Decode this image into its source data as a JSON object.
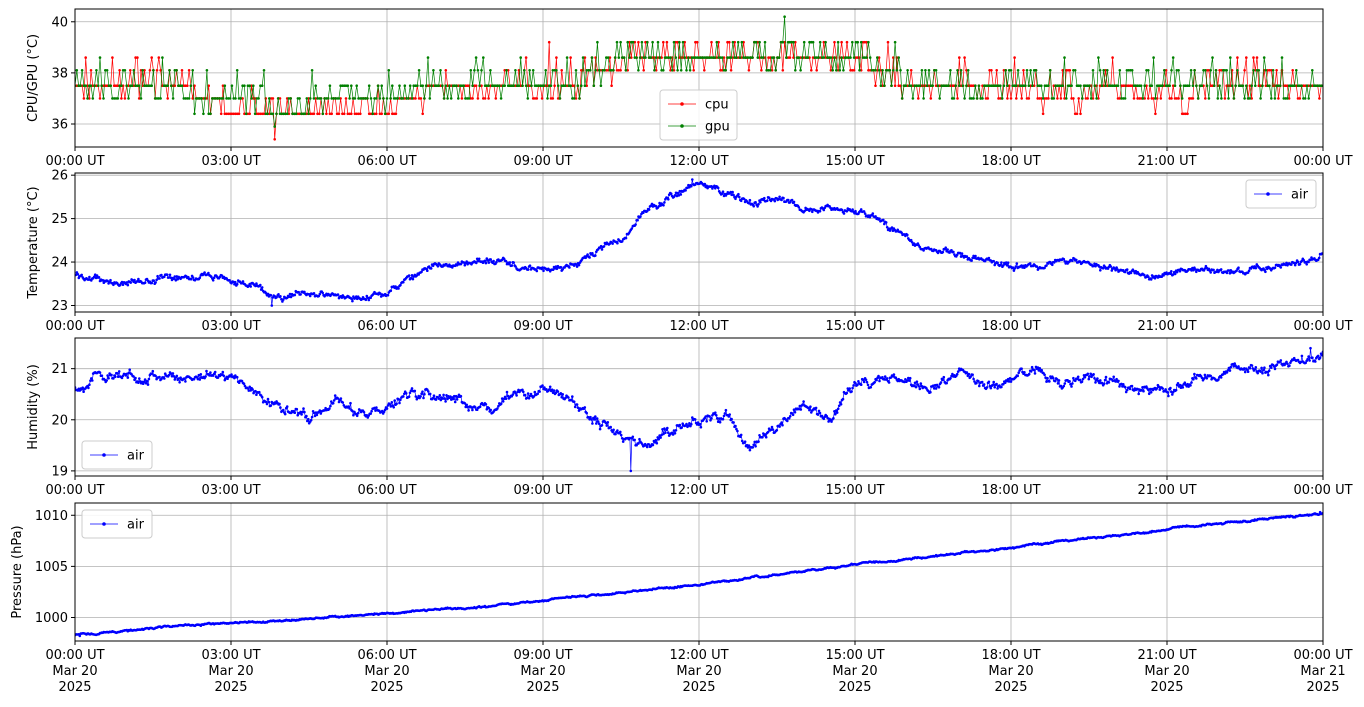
{
  "chart_data": [
    {
      "type": "line",
      "ylabel": "CPU/GPU (°C)",
      "ylim": [
        35.1,
        40.5
      ],
      "yticks": [
        "36",
        "38",
        "40"
      ],
      "ytick_values": [
        36,
        38,
        40
      ],
      "xlim_hours": [
        0,
        24
      ],
      "xtick_labels": [
        "00:00 UT",
        "03:00 UT",
        "06:00 UT",
        "09:00 UT",
        "12:00 UT",
        "15:00 UT",
        "18:00 UT",
        "21:00 UT",
        "00:00 UT"
      ],
      "grid": true,
      "legend_position": "lower-center",
      "series": [
        {
          "name": "cpu",
          "color": "#ff0000",
          "x": [
            0,
            1,
            2,
            2.5,
            3,
            3.5,
            4,
            4.5,
            5,
            5.5,
            6,
            7,
            8,
            9,
            9.5,
            10,
            11,
            12,
            13,
            14,
            15,
            15.5,
            16,
            17,
            18,
            19,
            20,
            21,
            22,
            23,
            24
          ],
          "y": [
            37.5,
            37.5,
            37.5,
            37.0,
            36.5,
            36.5,
            36.2,
            36.5,
            36.5,
            36.5,
            36.5,
            37.5,
            37.5,
            37.5,
            37.5,
            38.1,
            38.6,
            38.6,
            38.6,
            38.6,
            38.6,
            38.1,
            37.5,
            37.5,
            37.5,
            37.0,
            37.5,
            37.0,
            37.5,
            37.5,
            37.5
          ],
          "min_visible": 35.4,
          "max_visible": 39.2
        },
        {
          "name": "gpu",
          "color": "#008000",
          "x": [
            0,
            1,
            2,
            2.5,
            3,
            3.5,
            4,
            4.5,
            5,
            5.5,
            6,
            7,
            8,
            9,
            9.5,
            10,
            11,
            12,
            13,
            14,
            15,
            15.5,
            16,
            17,
            18,
            19,
            20,
            21,
            22,
            23,
            24
          ],
          "y": [
            37.5,
            37.3,
            37.3,
            37.0,
            37.0,
            36.8,
            36.5,
            36.7,
            36.8,
            37.0,
            37.0,
            37.5,
            37.5,
            37.3,
            37.3,
            38.2,
            38.6,
            38.6,
            38.6,
            38.6,
            38.6,
            38.2,
            37.5,
            37.5,
            37.6,
            37.5,
            37.5,
            37.5,
            37.5,
            37.5,
            37.6
          ],
          "min_visible": 35.9,
          "max_visible": 40.2
        }
      ]
    },
    {
      "type": "line",
      "ylabel": "Temperature (°C)",
      "ylim": [
        22.85,
        26.05
      ],
      "yticks": [
        "23",
        "24",
        "25",
        "26"
      ],
      "ytick_values": [
        23,
        24,
        25,
        26
      ],
      "xlim_hours": [
        0,
        24
      ],
      "xtick_labels": [
        "00:00 UT",
        "03:00 UT",
        "06:00 UT",
        "09:00 UT",
        "12:00 UT",
        "15:00 UT",
        "18:00 UT",
        "21:00 UT",
        "00:00 UT"
      ],
      "grid": true,
      "legend_position": "upper-right",
      "series": [
        {
          "name": "air",
          "color": "#0000ff",
          "x": [
            0,
            0.5,
            1,
            1.5,
            2,
            2.5,
            3,
            3.5,
            4,
            4.5,
            5,
            5.5,
            6,
            6.5,
            7,
            7.5,
            8,
            8.5,
            9,
            9.5,
            10,
            10.5,
            11,
            11.5,
            12,
            12.5,
            13,
            13.5,
            14,
            14.5,
            15,
            15.5,
            16,
            16.5,
            17,
            17.5,
            18,
            18.5,
            19,
            19.5,
            20,
            20.5,
            21,
            21.5,
            22,
            22.5,
            23,
            23.5,
            24
          ],
          "y": [
            23.7,
            23.6,
            23.5,
            23.6,
            23.7,
            23.7,
            23.6,
            23.4,
            23.2,
            23.3,
            23.2,
            23.2,
            23.3,
            23.6,
            24.0,
            23.9,
            24.1,
            23.9,
            23.8,
            23.9,
            24.2,
            24.5,
            25.2,
            25.5,
            25.8,
            25.6,
            25.4,
            25.5,
            25.2,
            25.3,
            25.2,
            24.9,
            24.5,
            24.3,
            24.2,
            24.0,
            23.9,
            23.9,
            24.0,
            23.9,
            23.8,
            23.7,
            23.7,
            23.8,
            23.8,
            23.8,
            23.9,
            24.0,
            24.1
          ],
          "min_visible": 23.0,
          "max_visible": 25.9
        }
      ]
    },
    {
      "type": "line",
      "ylabel": "Humidity (%)",
      "ylim": [
        18.9,
        21.6
      ],
      "yticks": [
        "19",
        "20",
        "21"
      ],
      "ytick_values": [
        19,
        20,
        21
      ],
      "xlim_hours": [
        0,
        24
      ],
      "xtick_labels": [
        "00:00 UT",
        "03:00 UT",
        "06:00 UT",
        "09:00 UT",
        "12:00 UT",
        "15:00 UT",
        "18:00 UT",
        "21:00 UT",
        "00:00 UT"
      ],
      "grid": true,
      "legend_position": "lower-left",
      "series": [
        {
          "name": "air",
          "color": "#0000ff",
          "x": [
            0,
            0.5,
            1,
            1.5,
            2,
            2.5,
            3,
            3.5,
            4,
            4.5,
            5,
            5.5,
            6,
            6.5,
            7,
            7.5,
            8,
            8.5,
            9,
            9.5,
            10,
            10.5,
            11,
            11.5,
            12,
            12.5,
            13,
            13.5,
            14,
            14.5,
            15,
            15.5,
            16,
            16.5,
            17,
            17.5,
            18,
            18.5,
            19,
            19.5,
            20,
            20.5,
            21,
            21.5,
            22,
            22.5,
            23,
            23.5,
            24
          ],
          "y": [
            20.6,
            20.9,
            20.8,
            20.9,
            20.8,
            20.9,
            20.9,
            20.5,
            20.2,
            20.1,
            20.4,
            20.1,
            20.2,
            20.5,
            20.5,
            20.3,
            20.2,
            20.5,
            20.6,
            20.4,
            20.0,
            19.7,
            19.5,
            19.8,
            20.0,
            20.1,
            19.4,
            19.9,
            20.3,
            20.0,
            20.7,
            20.8,
            20.7,
            20.6,
            20.9,
            20.6,
            20.8,
            21.0,
            20.7,
            20.8,
            20.7,
            20.6,
            20.6,
            20.8,
            20.9,
            21.0,
            21.0,
            21.2,
            21.3
          ],
          "min_visible": 19.0,
          "max_visible": 21.4
        }
      ]
    },
    {
      "type": "line",
      "ylabel": "Pressure (hPa)",
      "ylim": [
        997.7,
        1011.2
      ],
      "yticks": [
        "1000",
        "1005",
        "1010"
      ],
      "ytick_values": [
        1000,
        1005,
        1010
      ],
      "xlim_hours": [
        0,
        24
      ],
      "xtick_labels": [
        "00:00 UT\nMar 20\n2025",
        "03:00 UT\nMar 20\n2025",
        "06:00 UT\nMar 20\n2025",
        "09:00 UT\nMar 20\n2025",
        "12:00 UT\nMar 20\n2025",
        "15:00 UT\nMar 20\n2025",
        "18:00 UT\nMar 20\n2025",
        "21:00 UT\nMar 20\n2025",
        "00:00 UT\nMar 21\n2025"
      ],
      "grid": true,
      "legend_position": "upper-left",
      "series": [
        {
          "name": "air",
          "color": "#0000ff",
          "x": [
            0,
            1,
            2,
            3,
            4,
            5,
            6,
            7,
            8,
            9,
            10,
            11,
            12,
            13,
            14,
            15,
            16,
            17,
            18,
            19,
            20,
            21,
            22,
            23,
            24
          ],
          "y": [
            998.3,
            998.7,
            999.2,
            999.4,
            999.7,
            1000.1,
            1000.4,
            1000.8,
            1001.1,
            1001.7,
            1002.2,
            1002.7,
            1003.2,
            1003.9,
            1004.5,
            1005.2,
            1005.7,
            1006.3,
            1006.8,
            1007.5,
            1008.0,
            1008.6,
            1009.2,
            1009.7,
            1010.2
          ],
          "min_visible": 998.2,
          "max_visible": 1010.3
        }
      ]
    }
  ]
}
